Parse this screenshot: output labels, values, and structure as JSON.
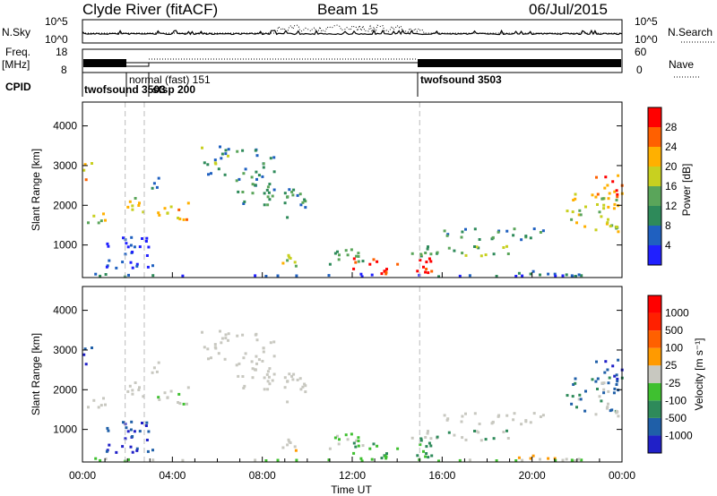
{
  "header": {
    "station": "Clyde River (fitACF)",
    "beam": "Beam 15",
    "date": "06/Jul/2015"
  },
  "top_panels": {
    "nsky_label": "N.Sky",
    "nsearch_label": "N.Search",
    "nsky_ticks": [
      "10^5",
      "10^0"
    ],
    "nsearch_ticks": [
      "10^5",
      "10^0"
    ],
    "freq_label_line1": "Freq.",
    "freq_label_line2": "[MHz]",
    "freq_ticks": [
      "18",
      "8"
    ],
    "nave_label": "Nave",
    "nave_ticks": [
      "60",
      "0"
    ],
    "cpid_label": "CPID",
    "cpid_entries": [
      {
        "text": "twofsound 3503",
        "start_hour": 0.0
      },
      {
        "text": "normal (fast) 151",
        "start_hour": 1.9
      },
      {
        "text": "stsp 200",
        "start_hour": 2.75
      },
      {
        "text": "twofsound 3503",
        "start_hour": 15.0
      }
    ],
    "cpid_overlap_text": "twofsound 3503"
  },
  "chart_data": [
    {
      "type": "heatmap",
      "name": "power",
      "ylabel": "Slant Range [km]",
      "ylim": [
        180,
        4600
      ],
      "yticks": [
        1000,
        2000,
        3000,
        4000
      ],
      "xlim": [
        0,
        24
      ],
      "colorbar_label": "Power [dB]",
      "colorbar_ticks": [
        "4",
        "8",
        "12",
        "16",
        "20",
        "24",
        "28"
      ],
      "colorbar_colors": [
        "#2020ff",
        "#1f60c0",
        "#2e8a5a",
        "#5aa55a",
        "#c8d020",
        "#ffb000",
        "#ff6000",
        "#ff0000"
      ]
    },
    {
      "type": "heatmap",
      "name": "velocity",
      "ylabel": "Slant Range [km]",
      "ylim": [
        180,
        4600
      ],
      "yticks": [
        1000,
        2000,
        3000,
        4000
      ],
      "xlim": [
        0,
        24
      ],
      "xlabel": "Time UT",
      "xticks": [
        "00:00",
        "04:00",
        "08:00",
        "12:00",
        "16:00",
        "20:00",
        "00:00"
      ],
      "colorbar_label": "Velocity [m s⁻¹]",
      "colorbar_ticks": [
        "1000",
        "500",
        "100",
        "25",
        "-25",
        "-100",
        "-500",
        "-1000"
      ],
      "colorbar_colors": [
        "#2020c8",
        "#1f5fa8",
        "#2e8a5a",
        "#3fc030",
        "#c8c8c0",
        "#ff9a00",
        "#ff6000",
        "#ff2000",
        "#ff0000"
      ]
    }
  ]
}
